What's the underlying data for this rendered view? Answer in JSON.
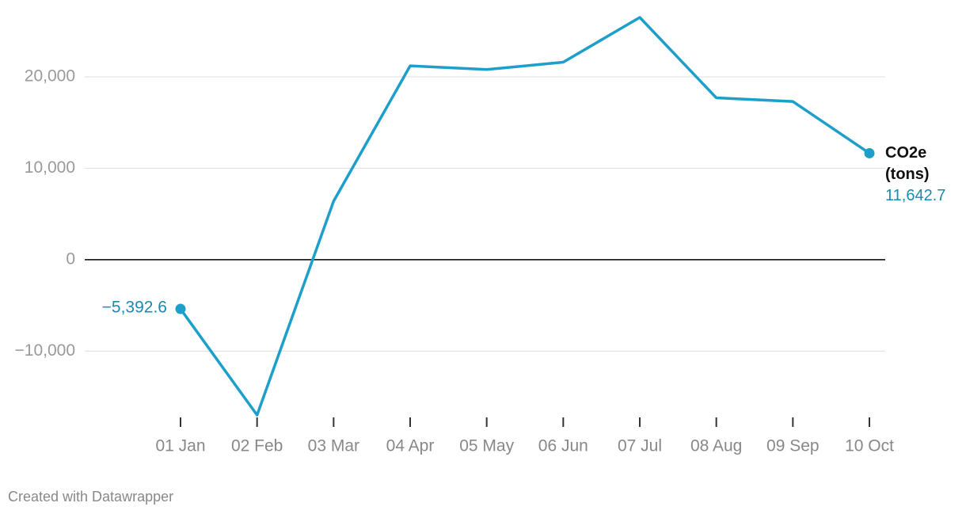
{
  "chart_data": {
    "type": "line",
    "categories": [
      "01 Jan",
      "02 Feb",
      "03 Mar",
      "04 Apr",
      "05 May",
      "06 Jun",
      "07 Jul",
      "08 Aug",
      "09 Sep",
      "10 Oct"
    ],
    "series": [
      {
        "name": "CO2e (tons)",
        "color": "#1d9fc9",
        "values": [
          -5392.6,
          -17000,
          6400,
          21200,
          20800,
          21600,
          26500,
          17700,
          17300,
          11642.7
        ],
        "value_labels": [
          "−5,392.6",
          null,
          null,
          null,
          null,
          null,
          null,
          null,
          null,
          "11,642.7"
        ]
      }
    ],
    "ylim": [
      -17000,
      26500
    ],
    "yticks": [
      {
        "value": -10000,
        "label": "−10,000"
      },
      0,
      {
        "value": 10000,
        "label": "10,000"
      },
      {
        "value": 20000,
        "label": "20,000"
      }
    ],
    "grid": true,
    "footer": "Created with Datawrapper"
  }
}
